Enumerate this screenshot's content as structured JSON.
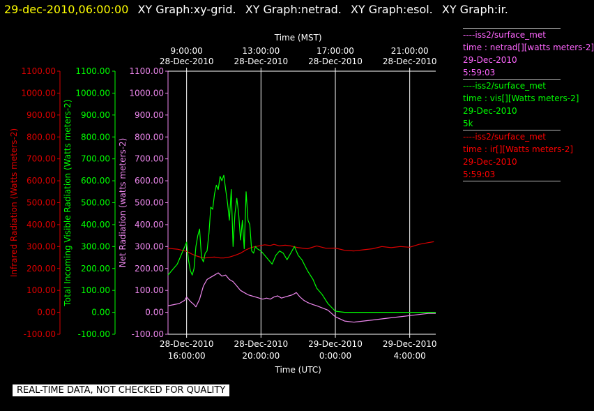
{
  "header": {
    "timestamp": "29-dec-2010,06:00:00",
    "graphs": [
      "XY Graph:xy-grid.",
      "XY Graph:netrad.",
      "XY Graph:esol.",
      "XY Graph:ir."
    ]
  },
  "legend": [
    {
      "color": "#ff66ff",
      "lines": [
        "----iss2/surface_met",
        "time : netrad[][watts meters-2]",
        "29-Dec-2010",
        "5:59:03"
      ]
    },
    {
      "color": "#00ff00",
      "lines": [
        "----iss2/surface_met",
        "time : vis[][Watts meters-2]",
        "29-Dec-2010",
        "5k"
      ]
    },
    {
      "color": "#ff0000",
      "lines": [
        "----iss2/surface_met",
        "time : ir[][Watts meters-2]",
        "29-Dec-2010",
        "5:59:03"
      ]
    }
  ],
  "footer": "REAL-TIME DATA, NOT CHECKED FOR QUALITY",
  "colors": {
    "ir": "#dd0000",
    "vis": "#00ff00",
    "netrad": "#ee88ee",
    "axis": "#ffffff",
    "header_time": "#ffff00"
  },
  "chart_data": {
    "type": "line",
    "top_axis": {
      "title": "Time (MST)",
      "ticks": [
        {
          "x": 1.0,
          "lines": [
            "9:00:00",
            "28-Dec-2010"
          ]
        },
        {
          "x": 5.0,
          "lines": [
            "13:00:00",
            "28-Dec-2010"
          ]
        },
        {
          "x": 9.0,
          "lines": [
            "17:00:00",
            "28-Dec-2010"
          ]
        },
        {
          "x": 13.0,
          "lines": [
            "21:00:00",
            "28-Dec-2010"
          ]
        }
      ]
    },
    "bottom_axis": {
      "title": "Time (UTC)",
      "ticks": [
        {
          "x": 1.0,
          "lines": [
            "28-Dec-2010",
            "16:00:00"
          ]
        },
        {
          "x": 5.0,
          "lines": [
            "28-Dec-2010",
            "20:00:00"
          ]
        },
        {
          "x": 9.0,
          "lines": [
            "29-Dec-2010",
            "0:00:00"
          ]
        },
        {
          "x": 13.0,
          "lines": [
            "29-Dec-2010",
            "4:00:00"
          ]
        }
      ]
    },
    "xlim": [
      0,
      14.4
    ],
    "ylim": [
      -100,
      1100
    ],
    "y_ticks": [
      "1100.00",
      "1000.00",
      "900.00",
      "800.00",
      "700.00",
      "600.00",
      "500.00",
      "400.00",
      "300.00",
      "200.00",
      "100.00",
      "0.00",
      "-100.00"
    ],
    "axes_labels": {
      "ir": "Infrared Radiation (Watts meters-2)",
      "vis": "Total Incoming Visible Radiation (Watts meters-2)",
      "netrad": "Net Radiation (watts meters-2)"
    },
    "grid": "vertical",
    "series": [
      {
        "key": "ir",
        "x": [
          0,
          0.5,
          1.0,
          1.3,
          1.5,
          1.8,
          2.0,
          2.2,
          2.5,
          2.8,
          3.0,
          3.3,
          3.6,
          3.9,
          4.2,
          4.5,
          4.7,
          5.0,
          5.2,
          5.5,
          5.7,
          6.0,
          6.3,
          6.6,
          7.0,
          7.5,
          8.0,
          8.5,
          9.0,
          9.5,
          10.0,
          10.5,
          11.0,
          11.5,
          12.0,
          12.5,
          13.0,
          13.5,
          14.0,
          14.3
        ],
        "y": [
          292,
          288,
          278,
          265,
          258,
          250,
          248,
          250,
          252,
          248,
          248,
          252,
          260,
          270,
          285,
          296,
          300,
          305,
          308,
          305,
          310,
          303,
          306,
          303,
          295,
          290,
          303,
          292,
          293,
          283,
          280,
          285,
          290,
          300,
          295,
          300,
          297,
          310,
          318,
          322
        ]
      },
      {
        "key": "vis",
        "x": [
          0,
          0.2,
          0.5,
          0.8,
          1.0,
          1.1,
          1.2,
          1.3,
          1.4,
          1.5,
          1.6,
          1.7,
          1.8,
          1.9,
          2.0,
          2.1,
          2.2,
          2.3,
          2.4,
          2.5,
          2.6,
          2.7,
          2.8,
          2.9,
          3.0,
          3.1,
          3.2,
          3.3,
          3.4,
          3.5,
          3.6,
          3.7,
          3.8,
          3.9,
          4.0,
          4.1,
          4.2,
          4.3,
          4.4,
          4.5,
          4.6,
          4.7,
          4.8,
          5.0,
          5.2,
          5.4,
          5.6,
          5.8,
          6.0,
          6.2,
          6.4,
          6.6,
          6.8,
          7.0,
          7.2,
          7.5,
          7.8,
          8.0,
          8.3,
          8.6,
          9.0,
          9.5,
          10.0,
          11.0,
          12.0,
          13.0,
          14.0,
          14.4
        ],
        "y": [
          170,
          190,
          220,
          280,
          320,
          240,
          190,
          170,
          200,
          300,
          350,
          380,
          250,
          230,
          270,
          280,
          360,
          480,
          470,
          540,
          580,
          560,
          620,
          600,
          625,
          560,
          500,
          420,
          560,
          300,
          450,
          520,
          450,
          330,
          420,
          290,
          550,
          420,
          400,
          280,
          270,
          300,
          290,
          280,
          260,
          240,
          220,
          260,
          280,
          270,
          240,
          270,
          300,
          260,
          240,
          190,
          150,
          110,
          80,
          40,
          5,
          0,
          0,
          0,
          0,
          0,
          0,
          0
        ]
      },
      {
        "key": "netrad",
        "x": [
          0,
          0.3,
          0.6,
          0.9,
          1.0,
          1.2,
          1.4,
          1.5,
          1.7,
          1.9,
          2.1,
          2.3,
          2.5,
          2.7,
          2.9,
          3.1,
          3.3,
          3.5,
          3.7,
          3.9,
          4.1,
          4.3,
          4.5,
          4.7,
          4.9,
          5.1,
          5.3,
          5.5,
          5.7,
          5.9,
          6.1,
          6.3,
          6.5,
          6.7,
          6.9,
          7.1,
          7.3,
          7.5,
          7.8,
          8.0,
          8.3,
          8.6,
          9.0,
          9.5,
          10.0,
          10.5,
          11.0,
          11.5,
          12.0,
          12.5,
          13.0,
          13.5,
          14.0,
          14.4
        ],
        "y": [
          30,
          35,
          40,
          55,
          70,
          50,
          35,
          25,
          60,
          120,
          150,
          160,
          170,
          180,
          165,
          170,
          150,
          140,
          120,
          100,
          90,
          80,
          75,
          70,
          65,
          60,
          65,
          60,
          70,
          75,
          65,
          70,
          75,
          80,
          90,
          70,
          55,
          45,
          35,
          30,
          20,
          10,
          -20,
          -40,
          -45,
          -40,
          -35,
          -30,
          -25,
          -20,
          -15,
          -10,
          -5,
          -5
        ]
      }
    ]
  }
}
